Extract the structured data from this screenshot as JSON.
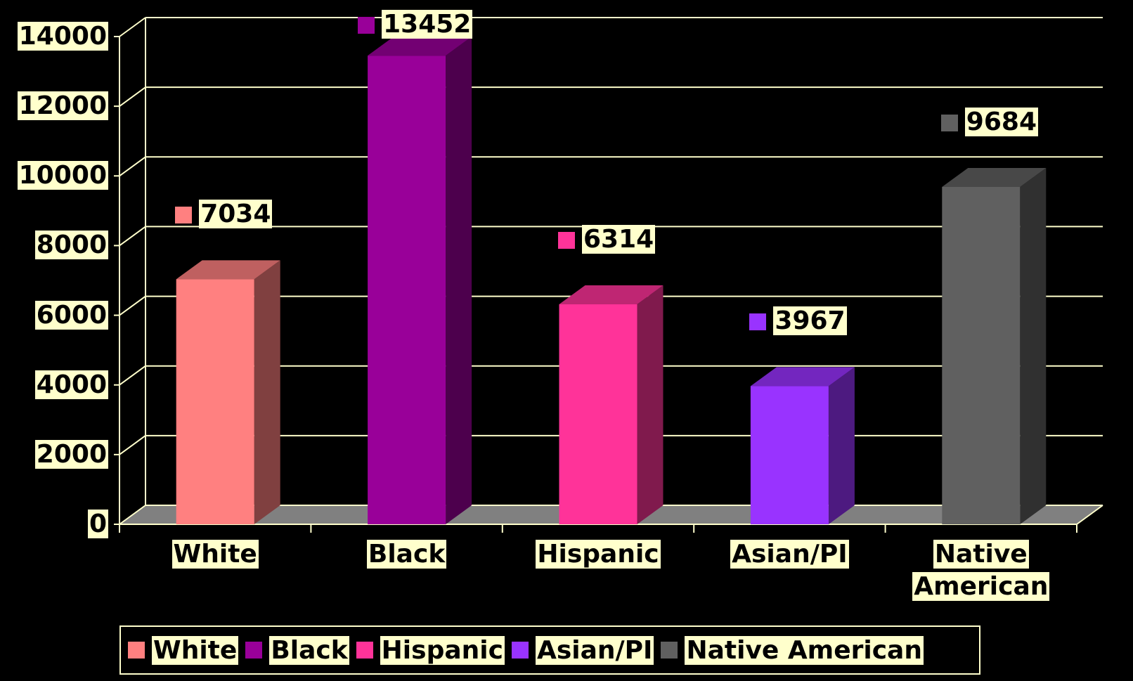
{
  "chart_data": {
    "type": "bar",
    "categories": [
      "White",
      "Black",
      "Hispanic",
      "Asian/PI",
      "Native American"
    ],
    "values": [
      7034,
      13452,
      6314,
      3967,
      9684
    ],
    "colors": [
      "#ff8080",
      "#990099",
      "#ff3399",
      "#9933ff",
      "#606060"
    ],
    "ylim": [
      0,
      14000
    ],
    "yticks": [
      0,
      2000,
      4000,
      6000,
      8000,
      10000,
      12000,
      14000
    ],
    "grid": true,
    "legend": "bottom"
  }
}
